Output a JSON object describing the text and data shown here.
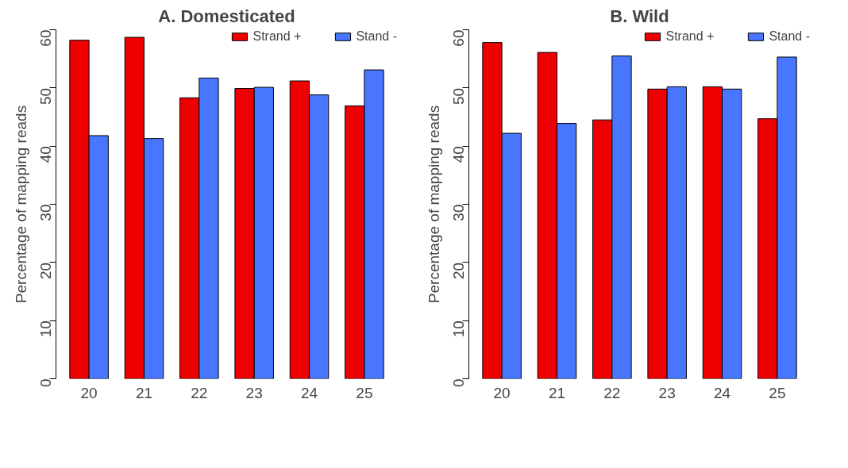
{
  "chart_data": [
    {
      "type": "bar",
      "title": "A. Domesticated",
      "ylabel": "Percentage of mapping reads",
      "categories": [
        "20",
        "21",
        "22",
        "23",
        "24",
        "25"
      ],
      "series": [
        {
          "name": "Strand +",
          "color": "#ee0000",
          "values": [
            58.2,
            58.7,
            48.3,
            49.9,
            51.2,
            46.9
          ]
        },
        {
          "name": "Stand -",
          "color": "#4876ff",
          "values": [
            41.8,
            41.3,
            51.7,
            50.1,
            48.8,
            53.1
          ]
        }
      ],
      "ylim": [
        0,
        60
      ],
      "yticks": [
        0,
        10,
        20,
        30,
        40,
        50,
        60
      ],
      "grid": false,
      "legend": "top"
    },
    {
      "type": "bar",
      "title": "B. Wild",
      "ylabel": "Percentage of mapping reads",
      "categories": [
        "20",
        "21",
        "22",
        "23",
        "24",
        "25"
      ],
      "series": [
        {
          "name": "Strand +",
          "color": "#ee0000",
          "values": [
            57.8,
            56.1,
            44.5,
            49.8,
            50.2,
            44.7
          ]
        },
        {
          "name": "Stand -",
          "color": "#4876ff",
          "values": [
            42.2,
            43.9,
            55.5,
            50.2,
            49.8,
            55.3
          ]
        }
      ],
      "ylim": [
        0,
        60
      ],
      "yticks": [
        0,
        10,
        20,
        30,
        40,
        50,
        60
      ],
      "grid": false,
      "legend": "top"
    }
  ]
}
